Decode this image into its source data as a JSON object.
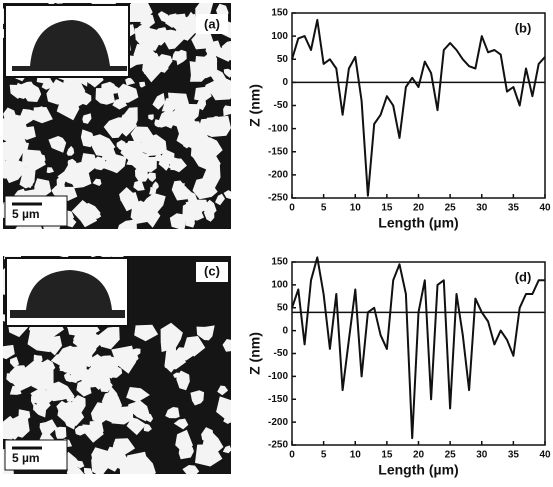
{
  "panels": [
    {
      "label": "(a)",
      "scale_bar": "5 µm"
    },
    {
      "label": "(c)",
      "scale_bar": "5 µm"
    }
  ],
  "chart_data": [
    {
      "type": "line",
      "panel_label": "(b)",
      "x": [
        0,
        1,
        2,
        3,
        4,
        5,
        6,
        7,
        8,
        9,
        10,
        11,
        12,
        13,
        14,
        15,
        16,
        17,
        18,
        19,
        20,
        21,
        22,
        23,
        24,
        25,
        26,
        27,
        28,
        29,
        30,
        31,
        32,
        33,
        34,
        35,
        36,
        37,
        38,
        39,
        40
      ],
      "series": [
        {
          "color": "#111111",
          "values": [
            50,
            95,
            100,
            70,
            135,
            40,
            50,
            30,
            -70,
            30,
            55,
            -40,
            -245,
            -90,
            -70,
            -30,
            -50,
            -120,
            -10,
            10,
            -10,
            45,
            20,
            -60,
            70,
            85,
            70,
            50,
            35,
            30,
            100,
            65,
            70,
            60,
            -20,
            -10,
            -50,
            30,
            -30,
            40,
            55
          ]
        }
      ],
      "xlim": [
        0,
        40
      ],
      "ylim": [
        -250,
        150
      ],
      "xticks": [
        0,
        5,
        10,
        15,
        20,
        25,
        30,
        35,
        40
      ],
      "yticks": [
        -250,
        -200,
        -150,
        -100,
        -50,
        0,
        50,
        100,
        150
      ],
      "xlabel": "Length (µm)",
      "ylabel": "Z (nm)",
      "reference_line": 0
    },
    {
      "type": "line",
      "panel_label": "(d)",
      "x": [
        0,
        1,
        2,
        3,
        4,
        5,
        6,
        7,
        8,
        9,
        10,
        11,
        12,
        13,
        14,
        15,
        16,
        17,
        18,
        19,
        20,
        21,
        22,
        23,
        24,
        25,
        26,
        27,
        28,
        29,
        30,
        31,
        32,
        33,
        34,
        35,
        36,
        37,
        38,
        39,
        40
      ],
      "series": [
        {
          "color": "#111111",
          "values": [
            50,
            90,
            -30,
            110,
            160,
            80,
            -40,
            80,
            -130,
            -20,
            90,
            -100,
            40,
            50,
            -10,
            -40,
            110,
            145,
            80,
            -235,
            40,
            110,
            -150,
            100,
            110,
            -170,
            80,
            -10,
            -130,
            70,
            40,
            20,
            -30,
            0,
            -20,
            -55,
            50,
            80,
            80,
            110,
            110
          ]
        }
      ],
      "xlim": [
        0,
        40
      ],
      "ylim": [
        -250,
        150
      ],
      "xticks": [
        0,
        5,
        10,
        15,
        20,
        25,
        30,
        35,
        40
      ],
      "yticks": [
        -250,
        -200,
        -150,
        -100,
        -50,
        0,
        50,
        100,
        150
      ],
      "xlabel": "Length (µm)",
      "ylabel": "Z (nm)",
      "reference_line": 40
    }
  ]
}
